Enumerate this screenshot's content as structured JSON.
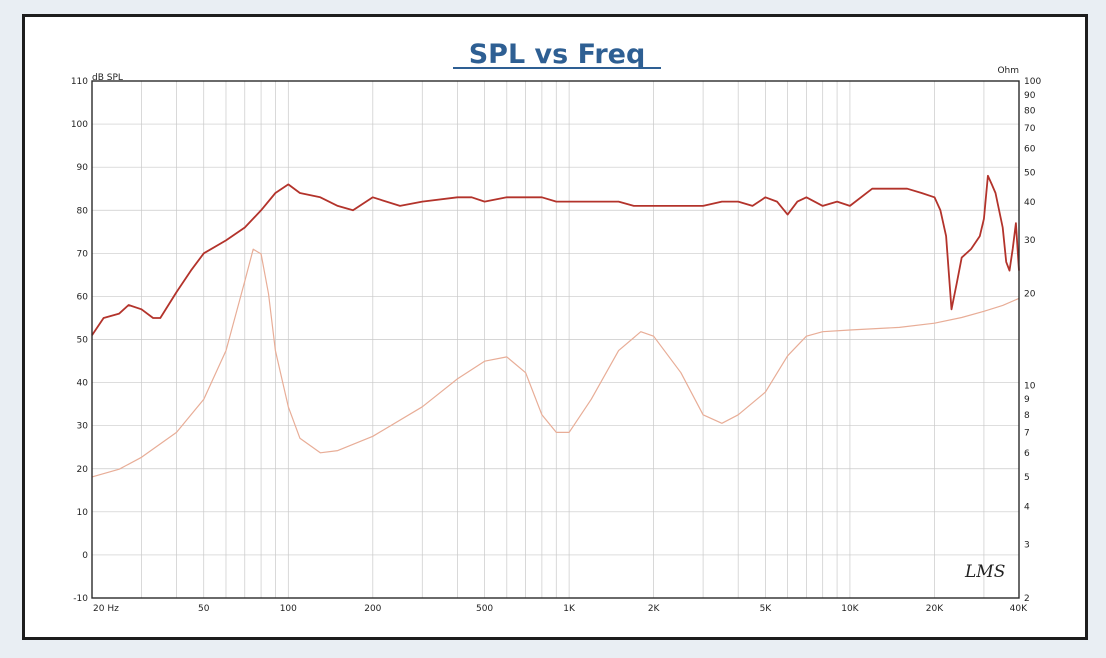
{
  "chart_data": {
    "type": "line",
    "title": "SPL vs Freq",
    "left_axis_unit": "dB SPL",
    "right_axis_unit": "Ohm",
    "x_scale": "log",
    "xlim": [
      20,
      40000
    ],
    "x_ticks": [
      {
        "value": 20,
        "label": "20 Hz"
      },
      {
        "value": 50,
        "label": "50"
      },
      {
        "value": 100,
        "label": "100"
      },
      {
        "value": 200,
        "label": "200"
      },
      {
        "value": 500,
        "label": "500"
      },
      {
        "value": 1000,
        "label": "1K"
      },
      {
        "value": 2000,
        "label": "2K"
      },
      {
        "value": 5000,
        "label": "5K"
      },
      {
        "value": 10000,
        "label": "10K"
      },
      {
        "value": 20000,
        "label": "20K"
      },
      {
        "value": 40000,
        "label": "40K"
      }
    ],
    "ylim": [
      -10,
      110
    ],
    "y_ticks": [
      "-10",
      "0",
      "10",
      "20",
      "30",
      "40",
      "50",
      "60",
      "70",
      "80",
      "90",
      "100",
      "110"
    ],
    "y2_scale": "log",
    "y2lim": [
      2,
      100
    ],
    "y2_ticks": [
      {
        "value": 2,
        "label": "2"
      },
      {
        "value": 3,
        "label": "3"
      },
      {
        "value": 4,
        "label": "4"
      },
      {
        "value": 5,
        "label": "5"
      },
      {
        "value": 6,
        "label": "6"
      },
      {
        "value": 7,
        "label": "7"
      },
      {
        "value": 8,
        "label": "8"
      },
      {
        "value": 9,
        "label": "9"
      },
      {
        "value": 10,
        "label": "10"
      },
      {
        "value": 20,
        "label": "20"
      },
      {
        "value": 30,
        "label": "30"
      },
      {
        "value": 40,
        "label": "40"
      },
      {
        "value": 50,
        "label": "50"
      },
      {
        "value": 60,
        "label": "60"
      },
      {
        "value": 70,
        "label": "70"
      },
      {
        "value": 80,
        "label": "80"
      },
      {
        "value": 90,
        "label": "90"
      },
      {
        "value": 100,
        "label": "100"
      }
    ],
    "grid": true,
    "logo_text": "LMS",
    "series": [
      {
        "axis": "left",
        "color": "#b3332b",
        "points": [
          [
            20,
            51
          ],
          [
            22,
            55
          ],
          [
            25,
            56
          ],
          [
            27,
            58
          ],
          [
            30,
            57
          ],
          [
            33,
            55
          ],
          [
            35,
            55
          ],
          [
            40,
            61
          ],
          [
            45,
            66
          ],
          [
            50,
            70
          ],
          [
            60,
            73
          ],
          [
            70,
            76
          ],
          [
            80,
            80
          ],
          [
            90,
            84
          ],
          [
            100,
            86
          ],
          [
            110,
            84
          ],
          [
            130,
            83
          ],
          [
            150,
            81
          ],
          [
            170,
            80
          ],
          [
            200,
            83
          ],
          [
            250,
            81
          ],
          [
            300,
            82
          ],
          [
            400,
            83
          ],
          [
            450,
            83
          ],
          [
            500,
            82
          ],
          [
            600,
            83
          ],
          [
            700,
            83
          ],
          [
            800,
            83
          ],
          [
            900,
            82
          ],
          [
            1000,
            82
          ],
          [
            1200,
            82
          ],
          [
            1500,
            82
          ],
          [
            1700,
            81
          ],
          [
            2000,
            81
          ],
          [
            2500,
            81
          ],
          [
            3000,
            81
          ],
          [
            3500,
            82
          ],
          [
            4000,
            82
          ],
          [
            4500,
            81
          ],
          [
            5000,
            83
          ],
          [
            5500,
            82
          ],
          [
            6000,
            79
          ],
          [
            6500,
            82
          ],
          [
            7000,
            83
          ],
          [
            8000,
            81
          ],
          [
            9000,
            82
          ],
          [
            10000,
            81
          ],
          [
            12000,
            85
          ],
          [
            14000,
            85
          ],
          [
            16000,
            85
          ],
          [
            18000,
            84
          ],
          [
            20000,
            83
          ],
          [
            21000,
            80
          ],
          [
            22000,
            74
          ],
          [
            23000,
            57
          ],
          [
            24000,
            63
          ],
          [
            25000,
            69
          ],
          [
            27000,
            71
          ],
          [
            29000,
            74
          ],
          [
            30000,
            78
          ],
          [
            31000,
            88
          ],
          [
            32000,
            86
          ],
          [
            33000,
            84
          ],
          [
            35000,
            76
          ],
          [
            36000,
            68
          ],
          [
            37000,
            66
          ],
          [
            38000,
            71
          ],
          [
            39000,
            77
          ],
          [
            40000,
            66
          ]
        ]
      },
      {
        "axis": "right",
        "color": "#e8ad97",
        "points": [
          [
            20,
            5
          ],
          [
            25,
            5.3
          ],
          [
            30,
            5.8
          ],
          [
            40,
            7
          ],
          [
            50,
            9
          ],
          [
            60,
            13
          ],
          [
            70,
            22
          ],
          [
            75,
            28
          ],
          [
            80,
            27
          ],
          [
            85,
            20
          ],
          [
            90,
            13
          ],
          [
            100,
            8.5
          ],
          [
            110,
            6.7
          ],
          [
            130,
            6
          ],
          [
            150,
            6.1
          ],
          [
            200,
            6.8
          ],
          [
            300,
            8.5
          ],
          [
            400,
            10.5
          ],
          [
            500,
            12
          ],
          [
            600,
            12.4
          ],
          [
            700,
            11
          ],
          [
            800,
            8
          ],
          [
            900,
            7
          ],
          [
            1000,
            7
          ],
          [
            1200,
            9
          ],
          [
            1500,
            13
          ],
          [
            1800,
            15
          ],
          [
            2000,
            14.5
          ],
          [
            2500,
            11
          ],
          [
            3000,
            8
          ],
          [
            3500,
            7.5
          ],
          [
            4000,
            8
          ],
          [
            5000,
            9.5
          ],
          [
            6000,
            12.5
          ],
          [
            7000,
            14.5
          ],
          [
            8000,
            15
          ],
          [
            10000,
            15.2
          ],
          [
            15000,
            15.5
          ],
          [
            20000,
            16
          ],
          [
            25000,
            16.7
          ],
          [
            30000,
            17.5
          ],
          [
            35000,
            18.3
          ],
          [
            40000,
            19.3
          ]
        ]
      }
    ]
  }
}
